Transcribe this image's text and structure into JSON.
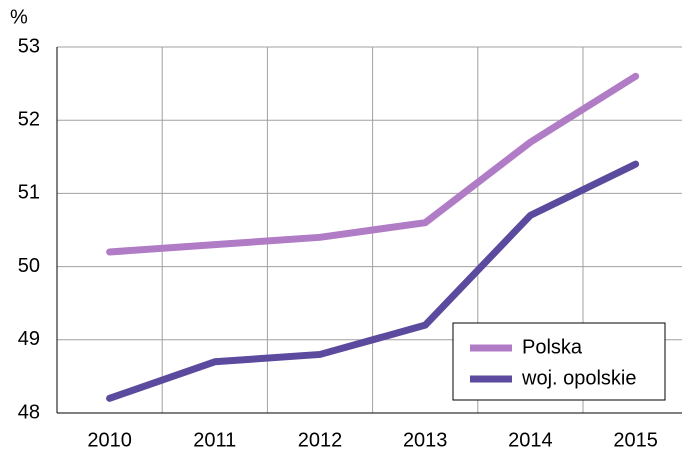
{
  "chart_data": {
    "type": "line",
    "y_unit": "%",
    "categories": [
      "2010",
      "2011",
      "2012",
      "2013",
      "2014",
      "2015"
    ],
    "series": [
      {
        "name": "Polska",
        "color": "#b07cc6",
        "values": [
          50.2,
          50.3,
          50.4,
          50.6,
          51.7,
          52.6
        ]
      },
      {
        "name": "woj. opolskie",
        "color": "#5b4a9e",
        "values": [
          48.2,
          48.7,
          48.8,
          49.2,
          50.7,
          51.4
        ]
      }
    ],
    "ylim": [
      48,
      53
    ],
    "yticks": [
      48,
      49,
      50,
      51,
      52,
      53
    ],
    "grid": true,
    "legend": "lower right"
  }
}
